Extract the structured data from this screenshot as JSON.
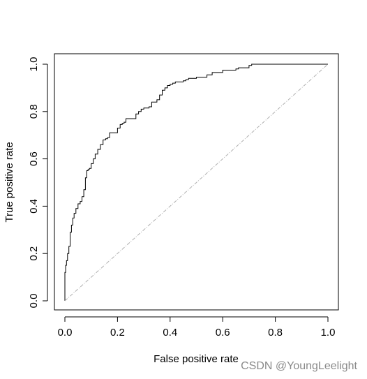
{
  "chart_data": {
    "type": "line",
    "title": "",
    "xlabel": "False positive rate",
    "ylabel": "True positive rate",
    "xlim": [
      0,
      1
    ],
    "ylim": [
      0,
      1
    ],
    "xticks": [
      "0.0",
      "0.2",
      "0.4",
      "0.6",
      "0.8",
      "1.0"
    ],
    "yticks": [
      "0.0",
      "0.2",
      "0.4",
      "0.6",
      "0.8",
      "1.0"
    ],
    "grid": false,
    "legend": "none",
    "series": [
      {
        "style": "step",
        "color": "#000000",
        "x": [
          0,
          0,
          0.003,
          0.003,
          0.006,
          0.006,
          0.01,
          0.01,
          0.015,
          0.015,
          0.02,
          0.02,
          0.025,
          0.025,
          0.03,
          0.03,
          0.035,
          0.035,
          0.042,
          0.042,
          0.05,
          0.05,
          0.058,
          0.058,
          0.065,
          0.065,
          0.072,
          0.072,
          0.078,
          0.078,
          0.083,
          0.083,
          0.088,
          0.088,
          0.093,
          0.093,
          0.1,
          0.1,
          0.108,
          0.108,
          0.115,
          0.115,
          0.125,
          0.125,
          0.135,
          0.135,
          0.145,
          0.145,
          0.155,
          0.155,
          0.162,
          0.162,
          0.17,
          0.17,
          0.2,
          0.2,
          0.21,
          0.21,
          0.218,
          0.218,
          0.225,
          0.225,
          0.232,
          0.232,
          0.27,
          0.27,
          0.28,
          0.28,
          0.29,
          0.29,
          0.3,
          0.3,
          0.32,
          0.32,
          0.33,
          0.33,
          0.35,
          0.35,
          0.36,
          0.36,
          0.37,
          0.37,
          0.38,
          0.38,
          0.39,
          0.39,
          0.4,
          0.4,
          0.41,
          0.41,
          0.42,
          0.42,
          0.45,
          0.45,
          0.46,
          0.46,
          0.47,
          0.47,
          0.5,
          0.5,
          0.54,
          0.54,
          0.56,
          0.56,
          0.6,
          0.6,
          0.65,
          0.65,
          0.66,
          0.66,
          0.7,
          0.7,
          0.71,
          0.71,
          1.0
        ],
        "y": [
          0,
          0.12,
          0.12,
          0.15,
          0.15,
          0.17,
          0.17,
          0.2,
          0.2,
          0.23,
          0.23,
          0.29,
          0.29,
          0.32,
          0.32,
          0.35,
          0.35,
          0.37,
          0.37,
          0.39,
          0.39,
          0.41,
          0.41,
          0.42,
          0.42,
          0.44,
          0.44,
          0.47,
          0.47,
          0.52,
          0.52,
          0.55,
          0.55,
          0.555,
          0.555,
          0.56,
          0.56,
          0.58,
          0.58,
          0.6,
          0.6,
          0.62,
          0.62,
          0.64,
          0.64,
          0.66,
          0.66,
          0.68,
          0.68,
          0.685,
          0.685,
          0.69,
          0.69,
          0.71,
          0.71,
          0.73,
          0.73,
          0.745,
          0.745,
          0.75,
          0.75,
          0.755,
          0.755,
          0.77,
          0.77,
          0.79,
          0.79,
          0.8,
          0.8,
          0.81,
          0.81,
          0.815,
          0.815,
          0.82,
          0.82,
          0.84,
          0.84,
          0.85,
          0.85,
          0.87,
          0.87,
          0.89,
          0.89,
          0.9,
          0.9,
          0.91,
          0.91,
          0.915,
          0.915,
          0.92,
          0.92,
          0.925,
          0.925,
          0.93,
          0.93,
          0.935,
          0.935,
          0.94,
          0.94,
          0.945,
          0.945,
          0.955,
          0.955,
          0.965,
          0.965,
          0.975,
          0.975,
          0.98,
          0.98,
          0.985,
          0.985,
          0.995,
          0.995,
          1.0,
          1.0
        ]
      },
      {
        "style": "dashed",
        "color": "#b0b0b0",
        "x": [
          0,
          1
        ],
        "y": [
          0,
          1
        ]
      }
    ]
  },
  "watermark": "CSDN @YoungLeelight"
}
